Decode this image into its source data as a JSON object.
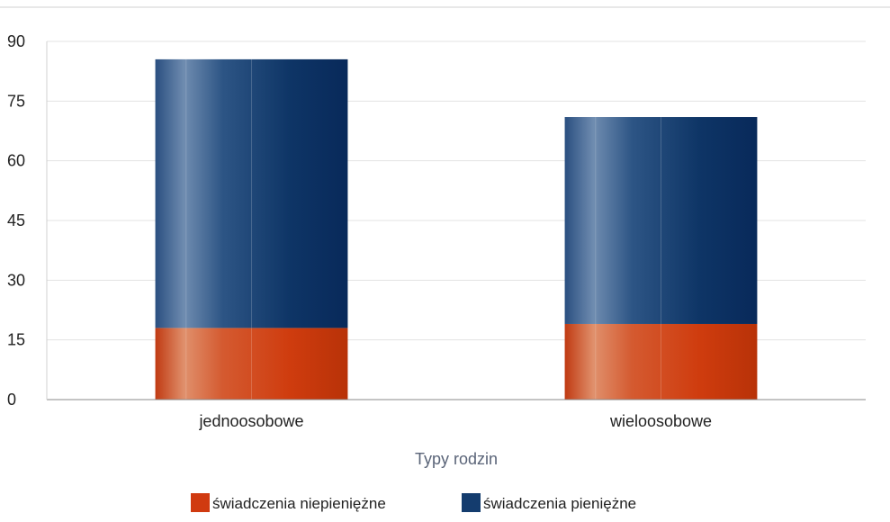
{
  "chart_data": {
    "type": "bar",
    "stacked": true,
    "categories": [
      "jednoosobowe",
      "wieloosobowe"
    ],
    "series": [
      {
        "name": "świadczenia niepieniężne",
        "values": [
          18,
          19
        ],
        "color": "#d03a10"
      },
      {
        "name": "świadczenia pieniężne",
        "values": [
          67.5,
          52
        ],
        "color": "#143c6e"
      }
    ],
    "xlabel": "Typy rodzin",
    "ylabel": "",
    "ylim": [
      0,
      90
    ],
    "yticks": [
      0,
      15,
      30,
      45,
      60,
      75,
      90
    ],
    "grid": true,
    "legend": "bottom"
  }
}
